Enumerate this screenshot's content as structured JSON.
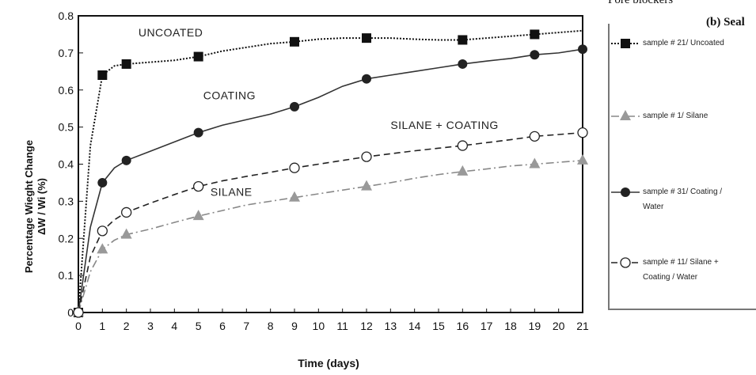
{
  "header": {
    "line1": "Pore blockers",
    "line2": "(b) Seal"
  },
  "chart_data": {
    "type": "line",
    "xlabel": "Time (days)",
    "ylabel_line1": "Percentage Wieght Change",
    "ylabel_line2": "ΔW / Wi (%)",
    "xlim": [
      0,
      21
    ],
    "ylim": [
      0,
      0.8
    ],
    "x_ticks": [
      "0",
      "1",
      "2",
      "3",
      "4",
      "5",
      "6",
      "7",
      "8",
      "9",
      "10",
      "11",
      "12",
      "13",
      "14",
      "15",
      "16",
      "17",
      "18",
      "19",
      "20",
      "21"
    ],
    "y_ticks": [
      "0",
      "0.1",
      "0.2",
      "0.3",
      "0.4",
      "0.5",
      "0.6",
      "0.7",
      "0.8"
    ],
    "grid": false,
    "legend_position": "right",
    "series": [
      {
        "name": "sample # 21/ Uncoated",
        "color": "#111111",
        "dash": "dotted",
        "marker": "filled-square",
        "x": [
          0,
          1,
          2,
          5,
          9,
          12,
          16,
          19
        ],
        "y": [
          0,
          0.64,
          0.67,
          0.69,
          0.73,
          0.74,
          0.735,
          0.75
        ],
        "curve_x": [
          0,
          0.5,
          1,
          1.5,
          2,
          3,
          4,
          5,
          6,
          7,
          8,
          9,
          10,
          11,
          12,
          13,
          14,
          15,
          16,
          17,
          18,
          19,
          20,
          21
        ],
        "curve_y": [
          0,
          0.45,
          0.64,
          0.665,
          0.67,
          0.675,
          0.68,
          0.69,
          0.705,
          0.715,
          0.725,
          0.73,
          0.737,
          0.74,
          0.74,
          0.74,
          0.737,
          0.735,
          0.735,
          0.74,
          0.745,
          0.75,
          0.755,
          0.76
        ]
      },
      {
        "name": "sample # 1/ Silane",
        "color": "#888888",
        "dash": "dashdot",
        "marker": "gray-triangle",
        "x": [
          0,
          1,
          2,
          5,
          9,
          12,
          16,
          19,
          21
        ],
        "y": [
          0,
          0.17,
          0.21,
          0.26,
          0.31,
          0.34,
          0.38,
          0.4,
          0.41
        ],
        "curve_x": [
          0,
          0.5,
          1,
          1.5,
          2,
          3,
          4,
          5,
          6,
          7,
          8,
          9,
          10,
          11,
          12,
          13,
          14,
          15,
          16,
          17,
          18,
          19,
          20,
          21
        ],
        "curve_y": [
          0,
          0.11,
          0.17,
          0.195,
          0.21,
          0.225,
          0.243,
          0.26,
          0.275,
          0.29,
          0.3,
          0.31,
          0.32,
          0.33,
          0.34,
          0.35,
          0.362,
          0.372,
          0.38,
          0.387,
          0.395,
          0.4,
          0.405,
          0.41
        ]
      },
      {
        "name": "sample # 31/ Coating / Water",
        "color": "#333333",
        "dash": "solid",
        "marker": "filled-circle",
        "x": [
          0,
          1,
          2,
          5,
          9,
          12,
          16,
          19,
          21
        ],
        "y": [
          0,
          0.35,
          0.41,
          0.485,
          0.555,
          0.63,
          0.67,
          0.695,
          0.71
        ],
        "curve_x": [
          0,
          0.5,
          1,
          1.5,
          2,
          3,
          4,
          5,
          6,
          7,
          8,
          9,
          10,
          11,
          12,
          13,
          14,
          15,
          16,
          17,
          18,
          19,
          20,
          21
        ],
        "curve_y": [
          0,
          0.23,
          0.35,
          0.39,
          0.41,
          0.435,
          0.46,
          0.485,
          0.505,
          0.52,
          0.535,
          0.555,
          0.58,
          0.61,
          0.63,
          0.64,
          0.65,
          0.66,
          0.67,
          0.678,
          0.685,
          0.695,
          0.7,
          0.71
        ]
      },
      {
        "name": "sample # 11/ Silane + Coating / Water",
        "color": "#222222",
        "dash": "dashed",
        "marker": "open-circle",
        "x": [
          0,
          1,
          2,
          5,
          9,
          12,
          16,
          19,
          21
        ],
        "y": [
          0,
          0.22,
          0.27,
          0.34,
          0.39,
          0.42,
          0.45,
          0.475,
          0.485
        ],
        "curve_x": [
          0,
          0.5,
          1,
          1.5,
          2,
          3,
          4,
          5,
          6,
          7,
          8,
          9,
          10,
          11,
          12,
          13,
          14,
          15,
          16,
          17,
          18,
          19,
          20,
          21
        ],
        "curve_y": [
          0,
          0.15,
          0.22,
          0.25,
          0.27,
          0.295,
          0.318,
          0.34,
          0.355,
          0.367,
          0.378,
          0.39,
          0.4,
          0.41,
          0.42,
          0.428,
          0.436,
          0.443,
          0.45,
          0.458,
          0.466,
          0.475,
          0.48,
          0.485
        ]
      }
    ],
    "annotations": [
      {
        "text": "UNCOATED",
        "x": 2.5,
        "y": 0.745
      },
      {
        "text": "COATING",
        "x": 5.2,
        "y": 0.575
      },
      {
        "text": "SILANE + COATING",
        "x": 13.0,
        "y": 0.495
      },
      {
        "text": "SILANE",
        "x": 5.5,
        "y": 0.315
      }
    ],
    "legend": [
      {
        "line1": "sample # 21/ Uncoated",
        "line2": ""
      },
      {
        "line1": "sample # 1/ Silane",
        "line2": ""
      },
      {
        "line1": "sample # 31/ Coating /",
        "line2": "Water"
      },
      {
        "line1": "sample # 11/ Silane +",
        "line2": "Coating / Water"
      }
    ]
  }
}
